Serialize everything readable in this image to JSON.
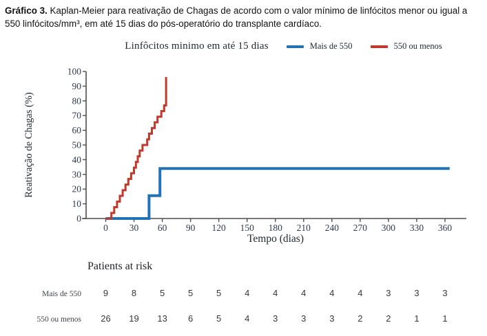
{
  "caption": {
    "prefix": "Gráfico 3.",
    "text": " Kaplan-Meier para reativação de Chagas de acordo com o valor mínimo de linfócitos menor ou igual a 550 linfócitos/mm³, em até 15 dias do pós-operatório do transplante cardíaco."
  },
  "legend": {
    "title": "Linfôcitos minimo em até 15 dias",
    "items": [
      {
        "label": "Mais de 550",
        "color": "#2273b5"
      },
      {
        "label": "550 ou menos",
        "color": "#c0392b"
      }
    ]
  },
  "chart_data": {
    "type": "line",
    "subtype": "kaplan-meier-step",
    "xlabel": "Tempo (dias)",
    "ylabel": "Reativação de Chagas (%)",
    "xlim": [
      0,
      375
    ],
    "ylim": [
      0,
      100
    ],
    "xticks": [
      0,
      30,
      60,
      90,
      120,
      150,
      180,
      210,
      240,
      270,
      300,
      330,
      360
    ],
    "yticks": [
      0,
      10,
      20,
      30,
      40,
      50,
      60,
      70,
      80,
      90,
      100
    ],
    "grid": false,
    "legend_position": "top",
    "axis_color": "#4d4d4d",
    "tick_text_color": "#2d3a4e",
    "series": [
      {
        "name": "Mais de 550",
        "color": "#2273b5",
        "stroke_width": 4,
        "steps": [
          [
            46,
            15.5
          ],
          [
            57.5,
            34
          ]
        ],
        "end_day": 365
      },
      {
        "name": "550 ou menos",
        "color": "#c0392b",
        "stroke_width": 3,
        "steps": [
          [
            6,
            3.8
          ],
          [
            9,
            7.7
          ],
          [
            12,
            11.5
          ],
          [
            15,
            15.4
          ],
          [
            18,
            19.2
          ],
          [
            21,
            23.1
          ],
          [
            24,
            26.9
          ],
          [
            27,
            30.8
          ],
          [
            30,
            34.6
          ],
          [
            32,
            38.5
          ],
          [
            34,
            42.3
          ],
          [
            36,
            46.2
          ],
          [
            39,
            50.0
          ],
          [
            44,
            53.8
          ],
          [
            46,
            57.7
          ],
          [
            49,
            61.5
          ],
          [
            52,
            65.4
          ],
          [
            55,
            69.2
          ],
          [
            59,
            73.1
          ],
          [
            62,
            76.9
          ],
          [
            64,
            96.2
          ]
        ],
        "end_day": null
      }
    ]
  },
  "risk_table": {
    "title": "Patients at risk",
    "rows": [
      {
        "label": "Mais de 550",
        "values": [
          9,
          8,
          5,
          5,
          5,
          4,
          4,
          4,
          4,
          4,
          3,
          3,
          3
        ]
      },
      {
        "label": "550 ou menos",
        "values": [
          26,
          19,
          13,
          6,
          5,
          4,
          3,
          3,
          3,
          2,
          2,
          1,
          1
        ]
      }
    ]
  }
}
